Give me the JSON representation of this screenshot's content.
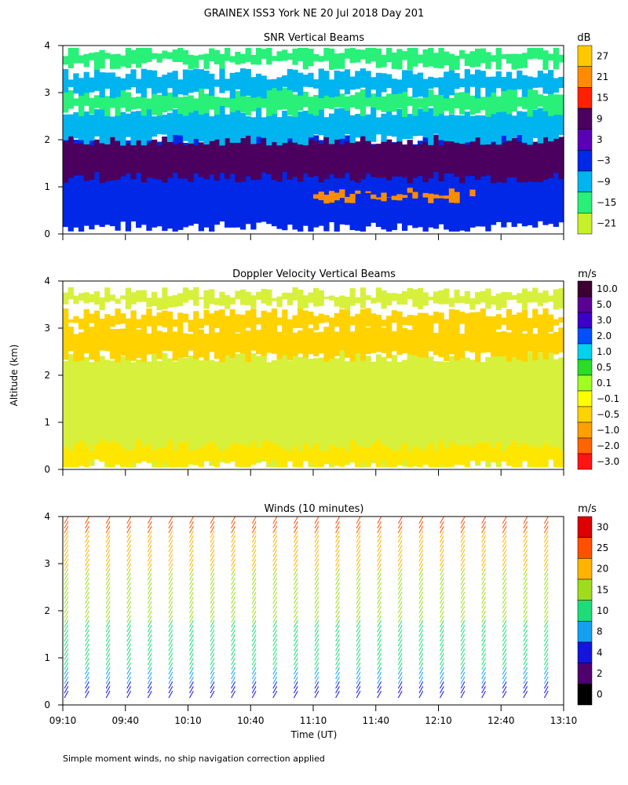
{
  "figure_title": "GRAINEX ISS3 York NE  20 Jul 2018 Day 201",
  "y_axis_label": "Altitude (km)",
  "x_axis_label": "Time (UT)",
  "footnote": "Simple moment winds, no ship navigation correction applied",
  "colors": {
    "background": "#ffffff",
    "axis": "#000000"
  },
  "chart_data": [
    {
      "type": "heatmap",
      "title": "SNR Vertical Beams",
      "unit": "dB",
      "x_ticks": [],
      "y_ticks": [
        "0",
        "1",
        "2",
        "3",
        "4"
      ],
      "ylim": [
        0,
        4
      ],
      "colorbar": {
        "labels": [
          "27",
          "21",
          "15",
          "9",
          "3",
          "−3",
          "−9",
          "−15",
          "−21"
        ],
        "colors": [
          "#ffc800",
          "#ff8c00",
          "#ff2000",
          "#4b0060",
          "#5a00b4",
          "#0028e6",
          "#00b4f0",
          "#28f078",
          "#c8f028"
        ]
      },
      "layers": [
        {
          "from": 0.15,
          "to": 2.0,
          "level": "#0028e6"
        },
        {
          "from": 1.2,
          "to": 2.0,
          "level": "#4b0060"
        },
        {
          "from": 2.0,
          "to": 2.6,
          "level": "#00b4f0"
        },
        {
          "from": 2.6,
          "to": 3.0,
          "level": "#28f078"
        },
        {
          "from": 3.0,
          "to": 3.4,
          "level": "#00b4f0"
        },
        {
          "from": 3.6,
          "to": 3.9,
          "level": "#28f078"
        },
        {
          "from": 0.75,
          "to": 0.87,
          "level": "#ff8c00"
        }
      ]
    },
    {
      "type": "heatmap",
      "title": "Doppler Velocity Vertical Beams",
      "unit": "m/s",
      "x_ticks": [],
      "y_ticks": [
        "0",
        "1",
        "2",
        "3",
        "4"
      ],
      "ylim": [
        0,
        4
      ],
      "colorbar": {
        "labels": [
          "10.0",
          "5.0",
          "3.0",
          "2.0",
          "1.0",
          "0.5",
          "0.1",
          "−0.1",
          "−0.5",
          "−1.0",
          "−2.0",
          "−3.0"
        ],
        "colors": [
          "#3c0032",
          "#5a0096",
          "#3c00c8",
          "#0050ff",
          "#00d2f0",
          "#28dc28",
          "#a0ff1e",
          "#ffff00",
          "#ffd200",
          "#ffa000",
          "#ff6400",
          "#ff1414"
        ]
      },
      "layers": [
        {
          "from": 0.1,
          "to": 2.4,
          "level": "#d7f03c"
        },
        {
          "from": 0.1,
          "to": 0.5,
          "level": "#ffe600"
        },
        {
          "from": 2.4,
          "to": 3.0,
          "level": "#ffd200"
        },
        {
          "from": 3.0,
          "to": 3.3,
          "level": "#ffd200"
        },
        {
          "from": 3.5,
          "to": 3.75,
          "level": "#d7f03c"
        }
      ]
    },
    {
      "type": "scatter",
      "title": "Winds (10 minutes)",
      "unit": "m/s",
      "x_ticks": [
        "09:10",
        "09:40",
        "10:10",
        "10:40",
        "11:10",
        "11:40",
        "12:10",
        "12:40",
        "13:10"
      ],
      "y_ticks": [
        "0",
        "1",
        "2",
        "3",
        "4"
      ],
      "ylim": [
        0,
        4
      ],
      "xlim": [
        "09:10",
        "13:10"
      ],
      "colorbar": {
        "labels": [
          "30",
          "25",
          "20",
          "15",
          "10",
          "8",
          "4",
          "2",
          "0"
        ],
        "colors": [
          "#dc0000",
          "#ff5000",
          "#ffb400",
          "#a0dc1e",
          "#1edc78",
          "#14a0f0",
          "#1414dc",
          "#50006e",
          "#000000"
        ]
      },
      "profile_times": [
        "09:10",
        "09:20",
        "09:30",
        "09:40",
        "09:50",
        "10:00",
        "10:10",
        "10:20",
        "10:30",
        "10:40",
        "10:50",
        "11:00",
        "11:10",
        "11:20",
        "11:30",
        "11:40",
        "11:50",
        "12:00",
        "12:10",
        "12:20",
        "12:30",
        "12:40",
        "12:50",
        "13:00"
      ],
      "speed_profile": [
        {
          "z": 0.1,
          "speed": 6
        },
        {
          "z": 0.5,
          "speed": 9
        },
        {
          "z": 1.0,
          "speed": 12
        },
        {
          "z": 1.5,
          "speed": 14
        },
        {
          "z": 2.0,
          "speed": 16
        },
        {
          "z": 2.5,
          "speed": 18
        },
        {
          "z": 3.0,
          "speed": 21
        },
        {
          "z": 3.5,
          "speed": 24
        },
        {
          "z": 4.0,
          "speed": 28
        }
      ],
      "shear_wind_from_deg": 300
    }
  ]
}
